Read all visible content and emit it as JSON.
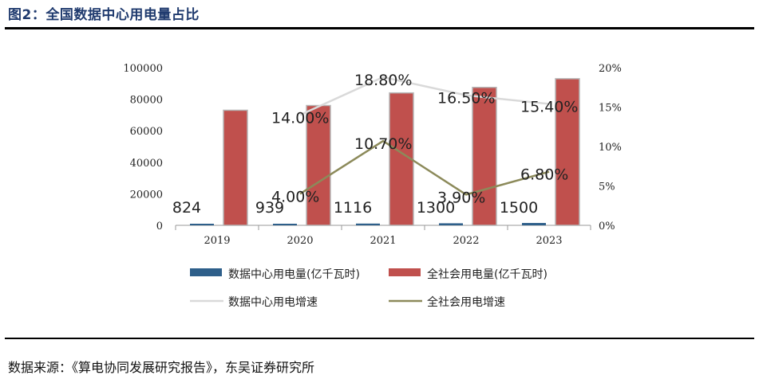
{
  "figure_title": "图2：全国数据中心用电量占比",
  "source_note": "数据来源：《算电协同发展研究报告》，东吴证券研究所",
  "colors": {
    "title": "#1f3a6e",
    "datacenter_bar": "#2e5f8a",
    "total_bar": "#c0504d",
    "datacenter_line": "#d9d9d9",
    "total_line": "#8c8a5a"
  },
  "chart_data": {
    "type": "bar",
    "categories": [
      "2019",
      "2020",
      "2021",
      "2022",
      "2023"
    ],
    "y_left": {
      "min": 0,
      "max": 100000,
      "ticks": [
        "0",
        "20000",
        "40000",
        "60000",
        "80000",
        "100000"
      ]
    },
    "y_right": {
      "min": 0,
      "max": 0.2,
      "ticks": [
        "0%",
        "5%",
        "10%",
        "15%",
        "20%"
      ]
    },
    "series": [
      {
        "name": "数据中心用电量(亿千瓦时)",
        "type": "bar",
        "axis": "left",
        "values": [
          824,
          939,
          1116,
          1300,
          1500
        ],
        "labels": [
          "824",
          "939",
          "1116",
          "1300",
          "1500"
        ]
      },
      {
        "name": "全社会用电量(亿千瓦时)",
        "type": "bar",
        "axis": "left",
        "values": [
          73000,
          76000,
          84000,
          87500,
          93000
        ]
      },
      {
        "name": "数据中心用电增速",
        "type": "line",
        "axis": "right",
        "values": [
          null,
          0.14,
          0.188,
          0.165,
          0.154
        ],
        "labels": [
          null,
          "14.00%",
          "18.80%",
          "16.50%",
          "15.40%"
        ]
      },
      {
        "name": "全社会用电增速",
        "type": "line",
        "axis": "right",
        "values": [
          null,
          0.04,
          0.107,
          0.039,
          0.068
        ],
        "labels": [
          null,
          "4.00%",
          "10.70%",
          "3.90%",
          "6.80%"
        ]
      }
    ],
    "legend": [
      {
        "name": "数据中心用电量(亿千瓦时)",
        "kind": "bar"
      },
      {
        "name": "全社会用电量(亿千瓦时)",
        "kind": "bar"
      },
      {
        "name": "数据中心用电增速",
        "kind": "line"
      },
      {
        "name": "全社会用电增速",
        "kind": "line"
      }
    ]
  }
}
